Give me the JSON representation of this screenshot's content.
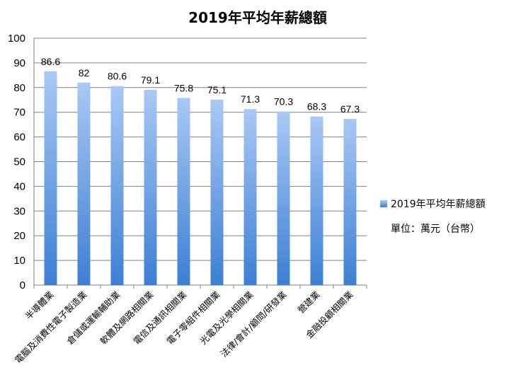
{
  "chart_data": {
    "type": "bar",
    "title": "2019年平均年薪總額",
    "categories": [
      "半導體業",
      "電腦及消費性電子製造業",
      "倉儲或運輸輔助業",
      "軟體及網路相關業",
      "電信及通訊相關業",
      "電子零組件相關業",
      "光電及光學相關業",
      "法律/會計/顧問/研發業",
      "營建業",
      "金融投顧相關業"
    ],
    "series": [
      {
        "name": "2019年平均年薪總額",
        "values": [
          86.6,
          82,
          80.6,
          79.1,
          75.8,
          75.1,
          71.3,
          70.3,
          68.3,
          67.3
        ],
        "color_top": "#a9c8f5",
        "color_bottom": "#3c7fd4"
      }
    ],
    "data_labels": [
      "86.6",
      "82",
      "80.6",
      "79.1",
      "75.8",
      "75.1",
      "71.3",
      "70.3",
      "68.3",
      "67.3"
    ],
    "ylim": [
      0,
      100
    ],
    "yticks": [
      0,
      10,
      20,
      30,
      40,
      50,
      60,
      70,
      80,
      90,
      100
    ],
    "grid": true,
    "legend_position": "right",
    "note": "單位：萬元（台幣）"
  }
}
